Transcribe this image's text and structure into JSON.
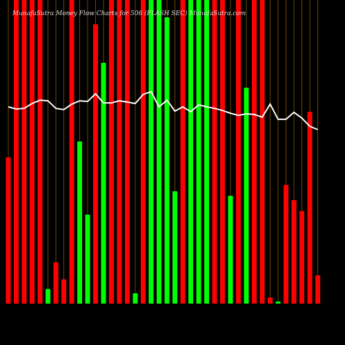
{
  "chart_data": {
    "type": "bar",
    "title": "MunafaSutra Money Flow Charts for 506 (FLASH SEC) MunafaSutra.com",
    "categories": [
      null,
      null,
      null,
      null,
      null,
      null,
      null,
      null,
      null,
      null,
      null,
      null,
      null,
      null,
      null,
      null,
      null,
      null,
      null,
      null,
      null,
      null,
      null,
      null,
      null,
      null,
      null,
      null,
      null,
      null,
      null,
      null,
      null,
      null,
      null,
      null,
      null,
      null,
      null,
      null
    ],
    "values": [
      48.2,
      100,
      100,
      100,
      100,
      4.8,
      13.6,
      8,
      100,
      53.4,
      29.3,
      92,
      79.3,
      100,
      100,
      100,
      3.4,
      100,
      100,
      100,
      94.3,
      37,
      100,
      100,
      100,
      100,
      100,
      100,
      35.5,
      100,
      71.1,
      100,
      100,
      2,
      0.7,
      39.1,
      34.1,
      30.5,
      63.2,
      9.3
    ],
    "colors": [
      "#ff0000",
      "#ff0000",
      "#ff0000",
      "#ff0000",
      "#ff0000",
      "#00ff00",
      "#ff0000",
      "#ff0000",
      "#ff0000",
      "#00ff00",
      "#00ff00",
      "#ff0000",
      "#00ff00",
      "#ff0000",
      "#ff0000",
      "#ff0000",
      "#00ff00",
      "#ff0000",
      "#00ff00",
      "#00ff00",
      "#00ff00",
      "#00ff00",
      "#ff0000",
      "#00ff00",
      "#00ff00",
      "#00ff00",
      "#ff0000",
      "#ff0000",
      "#00ff00",
      "#ff0000",
      "#00ff00",
      "#ff0000",
      "#ff0000",
      "#ff0000",
      "#00ff00",
      "#ff0000",
      "#ff0000",
      "#ff0000",
      "#ff0000",
      "#ff0000"
    ],
    "line": {
      "color": "#ffffff",
      "values": [
        64.8,
        64.1,
        64.3,
        65.9,
        67,
        66.8,
        64.3,
        63.9,
        65.7,
        66.8,
        66.6,
        69.1,
        66.1,
        66.1,
        66.8,
        66.4,
        65.9,
        68.9,
        69.8,
        64.8,
        67,
        63.4,
        64.8,
        63.2,
        65.5,
        64.8,
        64.3,
        63.6,
        62.7,
        62,
        62.5,
        62.3,
        61.4,
        65.7,
        60.7,
        60.7,
        63,
        61.1,
        58.4,
        57.3
      ]
    },
    "ylim": [
      0,
      100
    ]
  }
}
